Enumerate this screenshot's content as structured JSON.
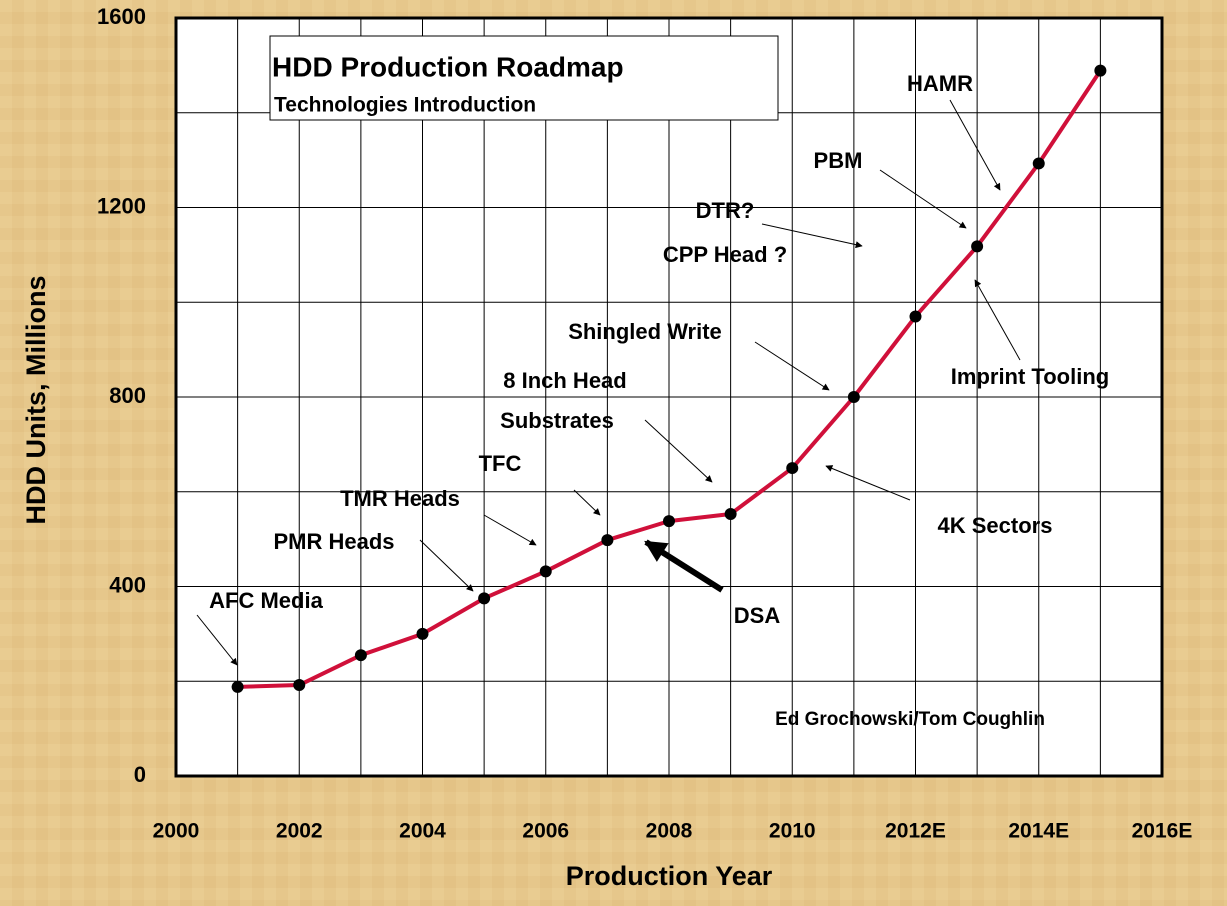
{
  "chart_data": {
    "type": "line",
    "title": "HDD Production Roadmap",
    "subtitle": "Technologies Introduction",
    "x_label": "Production Year",
    "y_label": "HDD Units, Millions",
    "x": [
      2001,
      2002,
      2003,
      2004,
      2005,
      2006,
      2007,
      2008,
      2009,
      2010,
      2011,
      2012,
      2013,
      2014,
      2015
    ],
    "series": [
      {
        "color": "#d0103a",
        "values": [
          188,
          192,
          255,
          300,
          375,
          432,
          498,
          538,
          553,
          650,
          800,
          970,
          1118,
          1293,
          1489
        ]
      }
    ],
    "xlim": [
      2000,
      2016
    ],
    "xticks": [
      2000,
      2002,
      2004,
      2006,
      2008,
      2010,
      {
        "value": 2012,
        "label": "2012E"
      },
      {
        "value": 2014,
        "label": "2014E"
      },
      {
        "value": 2016,
        "label": "2016E"
      }
    ],
    "xminor": [
      2001,
      2003,
      2005,
      2007,
      2009,
      2011,
      2013,
      2015
    ],
    "ylim": [
      0,
      1600
    ],
    "yticks": [
      0,
      400,
      800,
      1200,
      1600
    ],
    "yminor": [
      200,
      600,
      1000,
      1400
    ],
    "grid": true,
    "annotations": [
      "HAMR",
      "PBM",
      "DTR?",
      "CPP Head ?",
      "Shingled Write",
      "Imprint Tooling",
      "8 Inch Head",
      "Substrates",
      "TFC",
      "TMR Heads",
      "PMR Heads",
      "4K Sectors",
      "AFC Media",
      "DSA",
      "Ed Grochowski/Tom Coughlin"
    ]
  }
}
